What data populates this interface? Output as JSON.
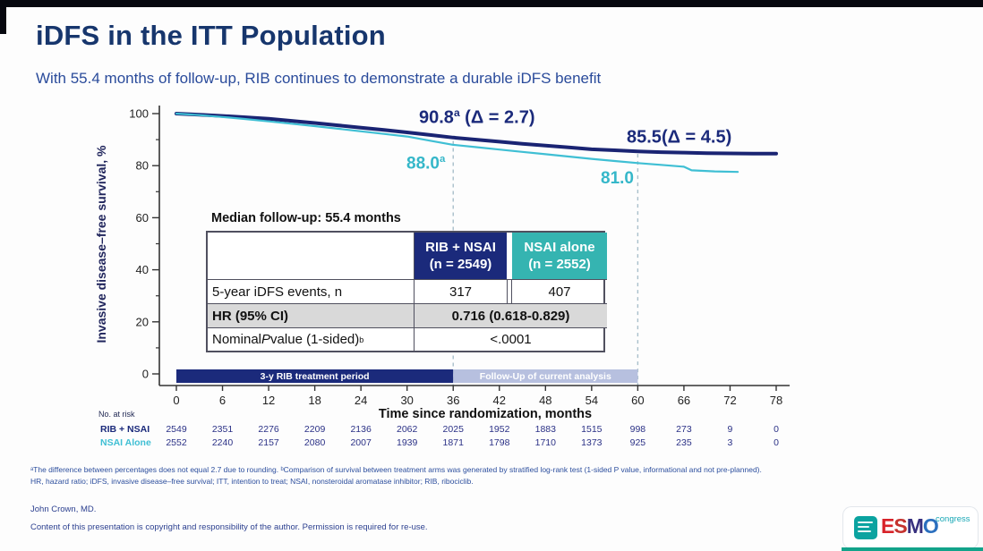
{
  "slide": {
    "title": "iDFS in the ITT Population",
    "subtitle": "With 55.4 months of follow-up, RIB continues to demonstrate a durable iDFS benefit",
    "footnote_line1": "ᵃThe difference between percentages does not equal 2.7 due to rounding. ᵇComparison of survival between treatment arms was generated by stratified log-rank test (1-sided P value, informational and not pre-planned).",
    "footnote_line2": "HR, hazard ratio; iDFS, invasive disease–free survival; ITT, intention to treat; NSAI, nonsteroidal aromatase inhibitor; RIB, ribociclib.",
    "author": "John Crown, MD.",
    "copyright": "Content of this presentation is copyright and responsibility of the author. Permission is required for re-use."
  },
  "annotations": {
    "rib_36": {
      "value": "90.8",
      "sup": "a",
      "delta": " (Δ = 2.7)"
    },
    "rib_60": {
      "value": "85.5",
      "sup": "",
      "delta": "(Δ = 4.5)"
    },
    "nsai_36": {
      "value": "88.0",
      "sup": "a",
      "delta": ""
    },
    "nsai_60": {
      "value": "81.0",
      "sup": "",
      "delta": ""
    }
  },
  "summary_table": {
    "note": "Median follow-up: 55.4 months",
    "header": {
      "rib_line1": "RIB + NSAI",
      "rib_line2": "(n = 2549)",
      "nsai_line1": "NSAI alone",
      "nsai_line2": "(n = 2552)"
    },
    "row_events": {
      "label": "5-year iDFS events, n",
      "rib": "317",
      "nsai": "407"
    },
    "row_hr": {
      "label": "HR (95% CI)",
      "value": "0.716 (0.618-0.829)"
    },
    "row_p": {
      "label_pre": "Nominal ",
      "label_italic": "P",
      "label_post": " value (1-sided)",
      "label_sup": "b",
      "value": "<.0001"
    }
  },
  "chart_data": {
    "type": "line",
    "xlabel": "Time since randomization, months",
    "ylabel": "Invasive disease–free survival, %",
    "xlim": [
      0,
      78
    ],
    "ylim": [
      0,
      100
    ],
    "xticks": [
      0,
      6,
      12,
      18,
      24,
      30,
      36,
      42,
      48,
      54,
      60,
      66,
      72,
      78
    ],
    "yticks_major": [
      0,
      20,
      40,
      60,
      80,
      100
    ],
    "yticks_minor": [
      10,
      30,
      50,
      70,
      90
    ],
    "grid": false,
    "series": [
      {
        "name": "RIB + NSAI",
        "color": "#1a2473",
        "width": 4,
        "points": [
          [
            0,
            100
          ],
          [
            3,
            99.6
          ],
          [
            6,
            99.1
          ],
          [
            9,
            98.6
          ],
          [
            12,
            98.0
          ],
          [
            15,
            97.2
          ],
          [
            18,
            96.4
          ],
          [
            21,
            95.5
          ],
          [
            24,
            94.6
          ],
          [
            27,
            93.7
          ],
          [
            30,
            92.8
          ],
          [
            33,
            91.8
          ],
          [
            36,
            90.8
          ],
          [
            39,
            90.0
          ],
          [
            42,
            89.2
          ],
          [
            45,
            88.4
          ],
          [
            48,
            87.7
          ],
          [
            51,
            87.0
          ],
          [
            54,
            86.3
          ],
          [
            57,
            85.9
          ],
          [
            60,
            85.5
          ],
          [
            63,
            85.2
          ],
          [
            66,
            85.0
          ],
          [
            69,
            84.8
          ],
          [
            72,
            84.7
          ],
          [
            75,
            84.6
          ],
          [
            78,
            84.6
          ]
        ]
      },
      {
        "name": "NSAI alone",
        "color": "#3fbfd4",
        "width": 2.2,
        "points": [
          [
            0,
            100
          ],
          [
            3,
            99.4
          ],
          [
            6,
            98.7
          ],
          [
            9,
            97.9
          ],
          [
            12,
            97.0
          ],
          [
            15,
            96.1
          ],
          [
            18,
            95.2
          ],
          [
            21,
            94.2
          ],
          [
            24,
            93.2
          ],
          [
            27,
            92.2
          ],
          [
            30,
            91.2
          ],
          [
            33,
            89.6
          ],
          [
            36,
            88.0
          ],
          [
            39,
            87.1
          ],
          [
            42,
            86.2
          ],
          [
            45,
            85.3
          ],
          [
            48,
            84.4
          ],
          [
            51,
            83.5
          ],
          [
            54,
            82.6
          ],
          [
            57,
            81.8
          ],
          [
            60,
            81.0
          ],
          [
            63,
            80.3
          ],
          [
            66,
            79.6
          ],
          [
            67,
            78.2
          ],
          [
            70,
            77.8
          ],
          [
            73,
            77.6
          ]
        ]
      }
    ],
    "landmarks": [
      {
        "x": 36,
        "rib": 90.8,
        "nsai": 88.0,
        "delta": 2.7
      },
      {
        "x": 60,
        "rib": 85.5,
        "nsai": 81.0,
        "delta": 4.5
      }
    ],
    "reference_lines": [
      {
        "x": 36,
        "from_pct": 89.5
      },
      {
        "x": 60,
        "from_pct": 84.5
      }
    ],
    "period_bars": [
      {
        "label": "3-y RIB treatment period",
        "start": 0,
        "end": 36,
        "color": "#1b2a7b",
        "text_color": "#ffffff"
      },
      {
        "label": "Follow-Up of current analysis",
        "start": 36,
        "end": 60,
        "color": "#b7c0df",
        "text_color": "#ffffff"
      }
    ],
    "at_risk": {
      "heading": "No. at risk",
      "rows": [
        {
          "label": "RIB + NSAI",
          "label_color": "#1b2a7b",
          "value_color": "#2b3186",
          "values": [
            "2549",
            "2351",
            "2276",
            "2209",
            "2136",
            "2062",
            "2025",
            "1952",
            "1883",
            "1515",
            "998",
            "273",
            "9",
            "0"
          ]
        },
        {
          "label": "NSAI Alone",
          "label_color": "#3fbfd4",
          "value_color": "#2b3186",
          "values": [
            "2552",
            "2240",
            "2157",
            "2080",
            "2007",
            "1939",
            "1871",
            "1798",
            "1710",
            "1373",
            "925",
            "235",
            "3",
            "0"
          ]
        }
      ]
    }
  },
  "logo": {
    "letters": [
      {
        "ch": "E",
        "color": "#d8232a"
      },
      {
        "ch": "S",
        "color": "#c4322e"
      },
      {
        "ch": "M",
        "color": "#37307e"
      },
      {
        "ch": "O",
        "color": "#2b6fbe"
      }
    ],
    "suffix": "congress"
  },
  "colors": {
    "title_navy": "#17366d",
    "subtitle_blue": "#2a4b9b",
    "rib_navy": "#1a2473",
    "nsai_cyan": "#3fbfd4",
    "header_teal": "#35b4b1",
    "hr_row_gray": "#d9d9d9",
    "followup_bar": "#b7c0df"
  }
}
